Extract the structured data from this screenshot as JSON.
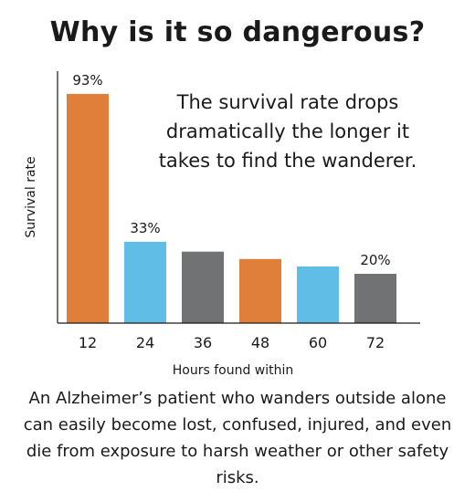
{
  "title": "Why is it so dangerous?",
  "annotation": "The survival rate drops dramatically the longer it takes to find the wanderer.",
  "caption": "An Alzheimer’s patient who wanders outside alone can easily become lost, confused, injured, and even die from exposure to harsh weather or other safety risks.",
  "colors": {
    "orange": "#e07f3a",
    "blue": "#60bde6",
    "gray": "#717274"
  },
  "chart_data": {
    "type": "bar",
    "xlabel": "Hours found within",
    "ylabel": "Survival rate",
    "categories": [
      "12",
      "24",
      "36",
      "48",
      "60",
      "72"
    ],
    "values": [
      93,
      33,
      29,
      26,
      23,
      20
    ],
    "value_labels": [
      "93%",
      "33%",
      "",
      "",
      "",
      "20%"
    ],
    "bar_colors": [
      "orange",
      "blue",
      "gray",
      "orange",
      "blue",
      "gray"
    ],
    "ylim": [
      0,
      100
    ],
    "grid": false,
    "legend": "none"
  }
}
